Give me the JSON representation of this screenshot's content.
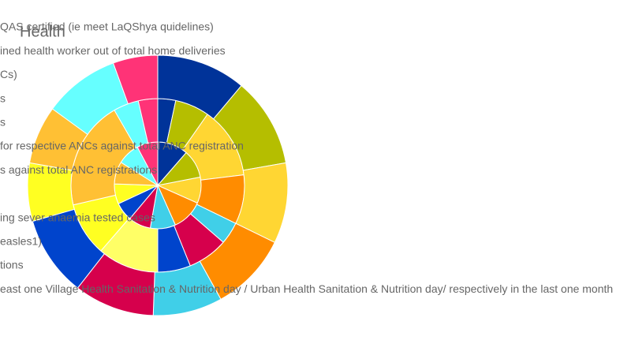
{
  "chart_data": {
    "type": "multi-ring-pie",
    "title": "Health",
    "categories": [
      "QAS certified (ie meet LaQShya quidelines)",
      "ined health worker out of total home deliveries",
      "Cs)",
      "s",
      "s",
      " for respective ANCs against total ANC registration",
      "s against total ANC registrations",
      null,
      "ing sever anaemia tested cases",
      "easles1)",
      "tions",
      "east one Village Health Sanitation & Nutrition day / Urban Health Sanitation & Nutrition day/ respectively in the last one month"
    ],
    "colors": [
      "#003399",
      "#b5be00",
      "#ffd633",
      "#ff8c00",
      "#40cfe8",
      "#d6004c",
      "#0044cc",
      "#ffff66",
      "#ffff22",
      "#ffc034",
      "#66ffff",
      "#ff3377"
    ],
    "series": [
      {
        "values": [
          41,
          38,
          35,
          42,
          34,
          30,
          25,
          null,
          27,
          30,
          30,
          28
        ]
      },
      {
        "values": [
          12,
          23,
          48,
          33,
          15,
          27,
          22,
          41,
          36,
          73,
          17,
          13
        ]
      },
      {
        "values": [
          40,
          40,
          36,
          35,
          31,
          36,
          36,
          null,
          26,
          26,
          34,
          20
        ]
      }
    ]
  }
}
